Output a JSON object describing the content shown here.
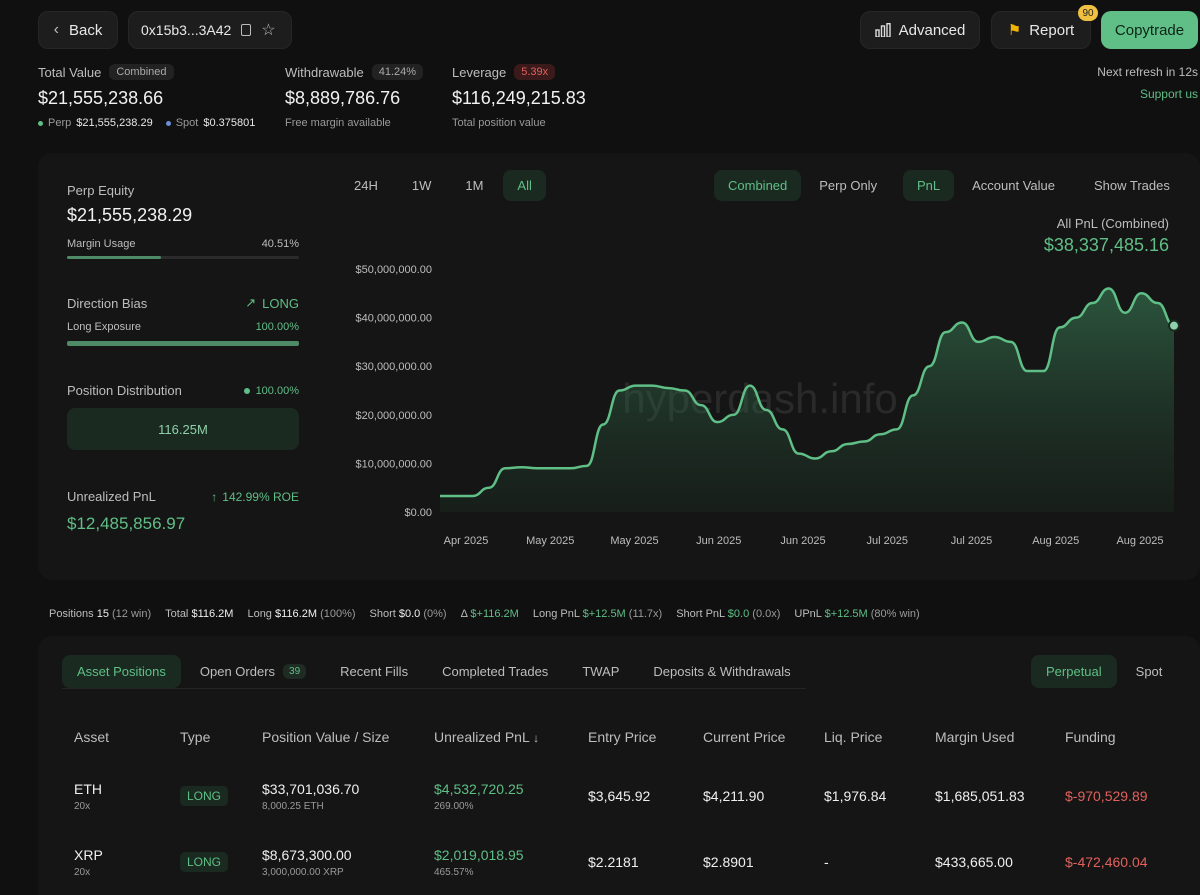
{
  "header": {
    "back_label": "Back",
    "address": "0x15b3...3A42",
    "advanced_label": "Advanced",
    "report_label": "Report",
    "report_badge": "90",
    "copytrade_label": "Copytrade"
  },
  "stats": {
    "total_value": {
      "label": "Total Value",
      "chip": "Combined",
      "value": "$21,555,238.66",
      "perp_label": "Perp",
      "perp_value": "$21,555,238.29",
      "spot_label": "Spot",
      "spot_value": "$0.375801"
    },
    "withdrawable": {
      "label": "Withdrawable",
      "chip": "41.24%",
      "value": "$8,889,786.76",
      "sub": "Free margin available"
    },
    "leverage": {
      "label": "Leverage",
      "chip": "5.39x",
      "value": "$116,249,215.83",
      "sub": "Total position value"
    },
    "refresh": "Next refresh in 12s",
    "support": "Support us"
  },
  "left_panel": {
    "perp_equity_label": "Perp Equity",
    "perp_equity_value": "$21,555,238.29",
    "margin_usage_label": "Margin Usage",
    "margin_usage_value": "40.51%",
    "margin_usage_fraction": 0.4051,
    "direction_bias_label": "Direction Bias",
    "direction_bias_value": "LONG",
    "long_exposure_label": "Long Exposure",
    "long_exposure_value": "100.00%",
    "long_exposure_fraction": 1.0,
    "position_dist_label": "Position Distribution",
    "position_dist_value": "100.00%",
    "position_dist_bar": "116.25M",
    "upnl_label": "Unrealized PnL",
    "upnl_roe": "142.99% ROE",
    "upnl_value": "$12,485,856.97"
  },
  "chart_controls": {
    "ranges": [
      "24H",
      "1W",
      "1M",
      "All"
    ],
    "active_range": "All",
    "modes": [
      "Combined",
      "Perp Only"
    ],
    "metrics": [
      "PnL",
      "Account Value"
    ],
    "show_trades": "Show Trades",
    "summary_label": "All PnL (Combined)",
    "summary_value": "$38,337,485.16",
    "watermark": "hyperdash.info"
  },
  "chart_data": {
    "type": "area",
    "y_ticks": [
      "$50,000,000.00",
      "$40,000,000.00",
      "$30,000,000.00",
      "$20,000,000.00",
      "$10,000,000.00",
      "$0.00"
    ],
    "ylim": [
      0,
      50000000
    ],
    "x_ticks": [
      "Apr 2025",
      "May 2025",
      "May 2025",
      "Jun 2025",
      "Jun 2025",
      "Jul 2025",
      "Jul 2025",
      "Aug 2025",
      "Aug 2025"
    ],
    "color": "#5fbf86",
    "series": [
      {
        "values": [
          3300000,
          3300000,
          3300000,
          5000000,
          9000000,
          9200000,
          9000000,
          9000000,
          9000000,
          9500000,
          18000000,
          25000000,
          26000000,
          26000000,
          25500000,
          25000000,
          22000000,
          18500000,
          20000000,
          26000000,
          21000000,
          17000000,
          12000000,
          11000000,
          12500000,
          14000000,
          14500000,
          16000000,
          17000000,
          24000000,
          30000000,
          37000000,
          39000000,
          35000000,
          36000000,
          35000000,
          29000000,
          29000000,
          38000000,
          40000000,
          43000000,
          46000000,
          41000000,
          45000000,
          43000000,
          38337485
        ]
      }
    ]
  },
  "summary": {
    "positions_label": "Positions",
    "positions_value": "15",
    "positions_win": "(12 win)",
    "total_label": "Total",
    "total_value": "$116.2M",
    "long_label": "Long",
    "long_value": "$116.2M",
    "long_pct": "(100%)",
    "short_label": "Short",
    "short_value": "$0.0",
    "short_pct": "(0%)",
    "delta_label": "Δ",
    "delta_value": "$+116.2M",
    "long_pnl_label": "Long PnL",
    "long_pnl_value": "$+12.5M",
    "long_pnl_x": "(11.7x)",
    "short_pnl_label": "Short PnL",
    "short_pnl_value": "$0.0",
    "short_pnl_x": "(0.0x)",
    "upnl_label": "UPnL",
    "upnl_value": "$+12.5M",
    "upnl_win": "(80% win)"
  },
  "tabs": {
    "items": [
      "Asset Positions",
      "Open Orders",
      "Recent Fills",
      "Completed Trades",
      "TWAP",
      "Deposits & Withdrawals"
    ],
    "open_orders_count": "39",
    "market": [
      "Perpetual",
      "Spot"
    ]
  },
  "table": {
    "headers": [
      "Asset",
      "Type",
      "Position Value / Size",
      "Unrealized PnL",
      "Entry Price",
      "Current Price",
      "Liq. Price",
      "Margin Used",
      "Funding"
    ],
    "sort_icon": "↓",
    "rows": [
      {
        "asset": "ETH",
        "lev": "20x",
        "type": "LONG",
        "value": "$33,701,036.70",
        "size": "8,000.25 ETH",
        "upnl": "$4,532,720.25",
        "upnl_pct": "269.00%",
        "entry": "$3,645.92",
        "current": "$4,211.90",
        "liq": "$1,976.84",
        "margin": "$1,685,051.83",
        "funding": "$-970,529.89"
      },
      {
        "asset": "XRP",
        "lev": "20x",
        "type": "LONG",
        "value": "$8,673,300.00",
        "size": "3,000,000.00 XRP",
        "upnl": "$2,019,018.95",
        "upnl_pct": "465.57%",
        "entry": "$2.2181",
        "current": "$2.8901",
        "liq": "-",
        "margin": "$433,665.00",
        "funding": "$-472,460.04"
      }
    ]
  }
}
